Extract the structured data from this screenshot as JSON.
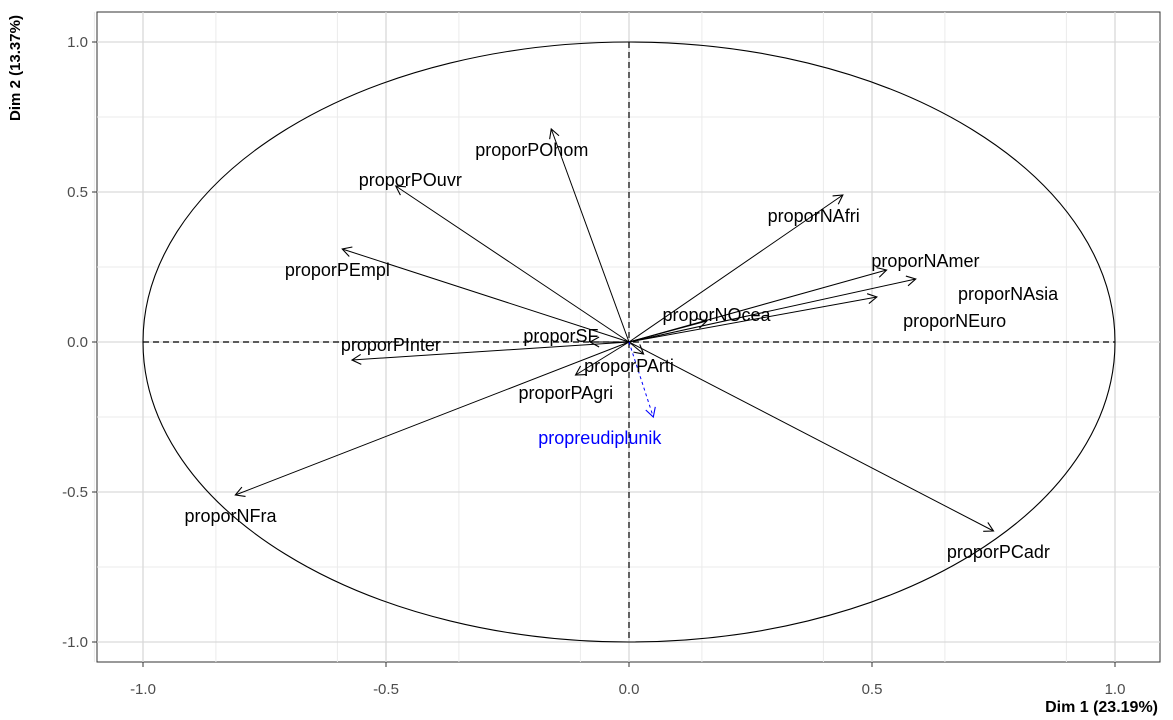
{
  "chart_data": {
    "type": "scatter",
    "subtype": "pca-variable-correlation-circle",
    "title": "",
    "xlabel": "Dim 1 (23.19%)",
    "ylabel": "Dim 2 (13.37%)",
    "xlim": [
      -1.1,
      1.1
    ],
    "ylim": [
      -1.0,
      1.0
    ],
    "x_ticks": [
      -1.0,
      -0.5,
      0.0,
      0.5,
      1.0
    ],
    "x_tick_labels": [
      "-1.0",
      "-0.5",
      "0.0",
      "0.5",
      "1.0"
    ],
    "y_ticks": [
      -1.0,
      -0.5,
      0.0,
      0.5,
      1.0
    ],
    "y_tick_labels": [
      "-1.0",
      "-0.5",
      "0.0",
      "0.5",
      "1.0"
    ],
    "grid": true,
    "unit_circle": true,
    "active_color": "#000000",
    "supplementary_color": "#0000ff",
    "variables": [
      {
        "name": "proporPOhom",
        "x": -0.16,
        "y": 0.71,
        "supplementary": false,
        "label_x": -0.2,
        "label_y": 0.64
      },
      {
        "name": "proporPOuvr",
        "x": -0.48,
        "y": 0.52,
        "supplementary": false,
        "label_x": -0.45,
        "label_y": 0.54
      },
      {
        "name": "proporPEmpl",
        "x": -0.59,
        "y": 0.31,
        "supplementary": false,
        "label_x": -0.6,
        "label_y": 0.24
      },
      {
        "name": "proporPInter",
        "x": -0.57,
        "y": -0.06,
        "supplementary": false,
        "label_x": -0.49,
        "label_y": -0.01
      },
      {
        "name": "proporSF",
        "x": -0.08,
        "y": 0.0,
        "supplementary": false,
        "label_x": -0.14,
        "label_y": 0.02
      },
      {
        "name": "proporPAgri",
        "x": -0.11,
        "y": -0.11,
        "supplementary": false,
        "label_x": -0.13,
        "label_y": -0.17
      },
      {
        "name": "proporNFra",
        "x": -0.81,
        "y": -0.51,
        "supplementary": false,
        "label_x": -0.82,
        "label_y": -0.58
      },
      {
        "name": "proporPArti",
        "x": 0.03,
        "y": -0.04,
        "supplementary": false,
        "label_x": 0.0,
        "label_y": -0.08
      },
      {
        "name": "proporNOcea",
        "x": 0.16,
        "y": 0.07,
        "supplementary": false,
        "label_x": 0.18,
        "label_y": 0.09
      },
      {
        "name": "proporNAfri",
        "x": 0.44,
        "y": 0.49,
        "supplementary": false,
        "label_x": 0.38,
        "label_y": 0.42
      },
      {
        "name": "proporNAmer",
        "x": 0.53,
        "y": 0.24,
        "supplementary": false,
        "label_x": 0.61,
        "label_y": 0.27
      },
      {
        "name": "proporNAsia",
        "x": 0.59,
        "y": 0.21,
        "supplementary": false,
        "label_x": 0.78,
        "label_y": 0.16
      },
      {
        "name": "proporNEuro",
        "x": 0.51,
        "y": 0.15,
        "supplementary": false,
        "label_x": 0.67,
        "label_y": 0.07
      },
      {
        "name": "proporPCadr",
        "x": 0.75,
        "y": -0.63,
        "supplementary": false,
        "label_x": 0.76,
        "label_y": -0.7
      },
      {
        "name": "propreudiplunik",
        "x": 0.05,
        "y": -0.25,
        "supplementary": true,
        "label_x": -0.06,
        "label_y": -0.32
      }
    ]
  }
}
